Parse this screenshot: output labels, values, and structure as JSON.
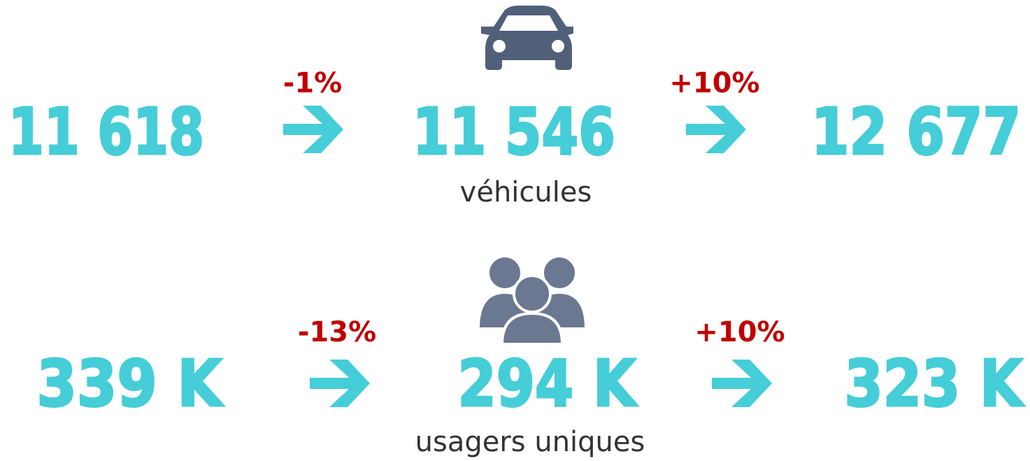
{
  "rows": [
    {
      "values": [
        "11 618",
        "11 546",
        "12 677"
      ],
      "changes": [
        "-1%",
        "+10%"
      ],
      "label": "véhicules"
    },
    {
      "values": [
        "339 K",
        "294 K",
        "323 K"
      ],
      "changes": [
        "-13%",
        "+10%"
      ],
      "label": "usagers uniques"
    }
  ]
}
